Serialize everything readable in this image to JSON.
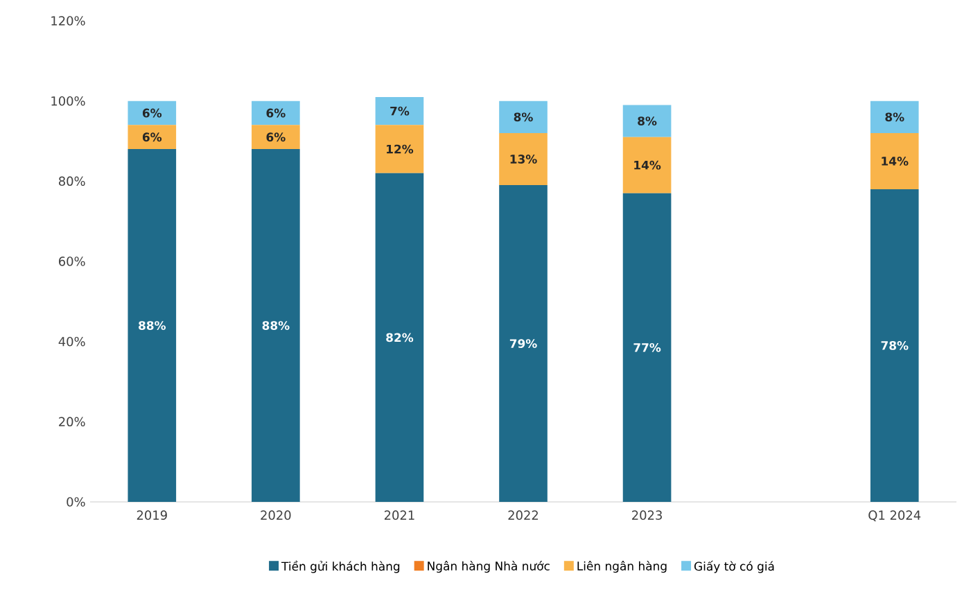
{
  "chart_data": {
    "type": "bar",
    "stacked": true,
    "legend": "bottom",
    "categories": [
      "2019",
      "2020",
      "2021",
      "2022",
      "2023",
      null,
      "Q1 2024"
    ],
    "ylim": [
      0,
      120
    ],
    "yticks": [
      {
        "value": 0,
        "label": "0%"
      },
      {
        "value": 20,
        "label": "20%"
      },
      {
        "value": 40,
        "label": "40%"
      },
      {
        "value": 60,
        "label": "60%"
      },
      {
        "value": 80,
        "label": "80%"
      },
      {
        "value": 100,
        "label": "100%"
      },
      {
        "value": 120,
        "label": "120%"
      }
    ],
    "series": [
      {
        "name": "Tiền gửi khách hàng",
        "color": "#1f6b8a",
        "values": [
          88,
          88,
          82,
          79,
          77,
          null,
          78
        ],
        "value_labels": [
          "88%",
          "88%",
          "82%",
          "79%",
          "77%",
          null,
          "78%"
        ]
      },
      {
        "name": "Ngân hàng Nhà nước",
        "color": "#f07d22",
        "values": [
          0,
          0,
          0,
          0,
          0,
          null,
          0
        ],
        "value_labels": [
          null,
          null,
          null,
          null,
          null,
          null,
          null
        ]
      },
      {
        "name": "Liên ngân hàng",
        "color": "#f9b44a",
        "values": [
          6,
          6,
          12,
          13,
          14,
          null,
          14
        ],
        "value_labels": [
          "6%",
          "6%",
          "12%",
          "13%",
          "14%",
          null,
          "14%"
        ]
      },
      {
        "name": "Giấy tờ có giá",
        "color": "#76c7ea",
        "values": [
          6,
          6,
          7,
          8,
          8,
          null,
          8
        ],
        "value_labels": [
          "6%",
          "6%",
          "7%",
          "8%",
          "8%",
          null,
          "8%"
        ]
      }
    ]
  }
}
